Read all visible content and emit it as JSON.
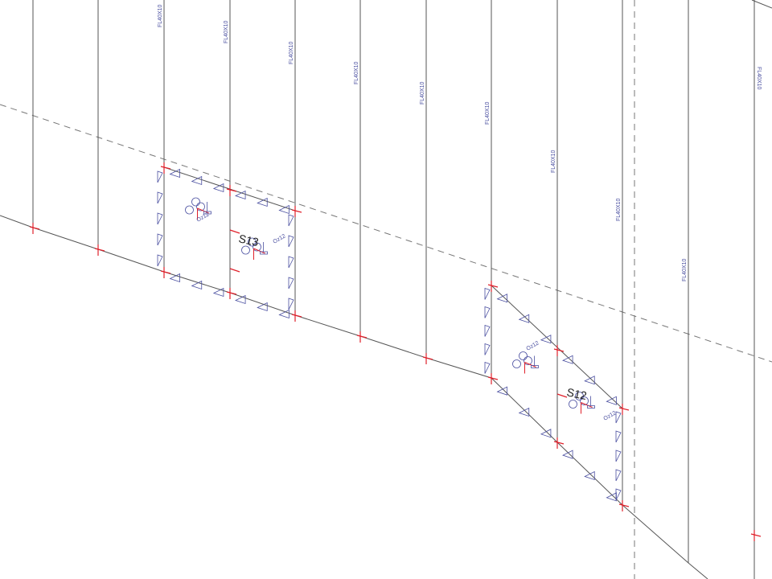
{
  "drawing": {
    "member_labels": [
      "FL40X10",
      "FL40X10",
      "FL40X10",
      "FL40X10",
      "FL40X10",
      "FL40X10",
      "FL40X10",
      "FL40X10",
      "FL40X10",
      "FL40X10"
    ],
    "slabs": [
      {
        "name": "S13"
      },
      {
        "name": "S12"
      }
    ],
    "support_label": "Oz12",
    "colors": {
      "member": "#555555",
      "node": "#e0202a",
      "support": "#4a4fa0",
      "grid": "#777777"
    }
  }
}
